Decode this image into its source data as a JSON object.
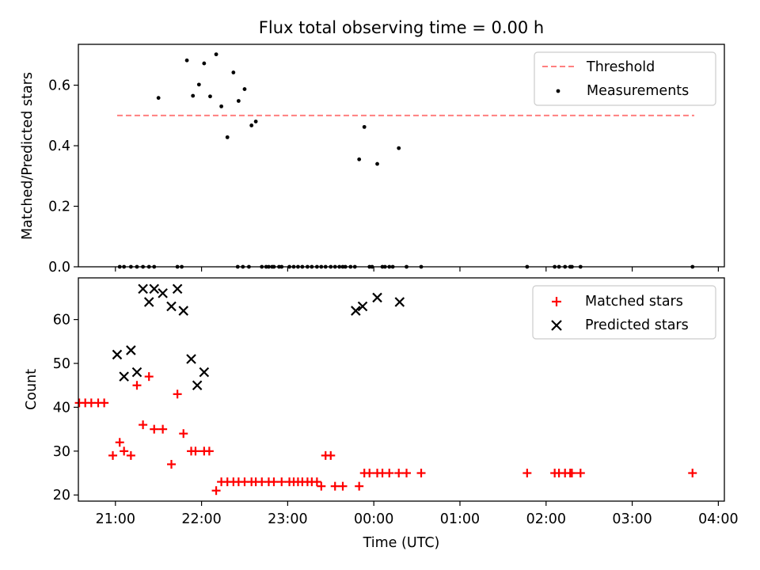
{
  "figure": {
    "title": "Flux total observing time = 0.00 h"
  },
  "chart_data": [
    {
      "type": "scatter",
      "panel": "top",
      "ylabel": "Matched/Predicted stars",
      "xlabel": "",
      "x_unit": "hours since 00:00 UTC (negative = previous day)",
      "xlim": [
        -3.43,
        4.07
      ],
      "ylim": [
        0,
        0.735
      ],
      "yticks": [
        0.0,
        0.2,
        0.4,
        0.6
      ],
      "ytick_labels": [
        "0.0",
        "0.2",
        "0.4",
        "0.6"
      ],
      "xticks": [
        -3,
        -2,
        -1,
        0,
        1,
        2,
        3,
        4
      ],
      "xtick_labels": [
        "",
        "",
        "",
        "",
        "",
        "",
        "",
        ""
      ],
      "legend_position": "top-right",
      "threshold": {
        "name": "Threshold",
        "y": 0.5,
        "x_range": [
          -2.98,
          3.72
        ],
        "color": "#ff7f7f",
        "style": "dashed"
      },
      "series": [
        {
          "name": "Measurements",
          "marker": "dot",
          "color": "#000000",
          "x": [
            -2.5,
            -2.17,
            -2.1,
            -2.03,
            -1.97,
            -1.9,
            -1.83,
            -1.77,
            -1.7,
            -1.63,
            -1.57,
            -1.5,
            -1.42,
            -1.37,
            -1.3,
            -1.22,
            -1.16,
            -1.07,
            -0.98,
            -0.93,
            -0.88,
            -0.83,
            -0.77,
            -0.72,
            -0.66,
            -0.61,
            -0.56,
            -0.5,
            -0.45,
            -0.36,
            -0.17,
            -0.11,
            -0.05,
            0.04,
            0.1,
            0.18,
            0.29,
            -2.95,
            -2.9,
            -2.82,
            -2.75,
            -2.68,
            -2.61,
            -2.55,
            -2.28,
            -2.23,
            -1.58,
            -1.52,
            -1.45,
            -1.25,
            -1.18,
            -1.1,
            -0.4,
            -0.33,
            -0.27,
            -0.22,
            -0.02,
            0.13,
            0.22,
            0.38,
            0.55,
            1.78,
            2.1,
            2.15,
            2.22,
            2.28,
            2.3,
            2.4,
            3.7
          ],
          "y": [
            0.558,
            0.682,
            0.565,
            0.602,
            0.672,
            0.563,
            0.702,
            0.53,
            0.428,
            0.642,
            0.548,
            0.587,
            0.467,
            0.48,
            0.0,
            0.0,
            0.0,
            0.0,
            0.0,
            0.0,
            0.0,
            0.0,
            0.0,
            0.0,
            0.0,
            0.0,
            0.0,
            0.0,
            0.0,
            0.0,
            0.355,
            0.462,
            0.0,
            0.34,
            0.0,
            0.0,
            0.392,
            0.0,
            0.0,
            0.0,
            0.0,
            0.0,
            0.0,
            0.0,
            0.0,
            0.0,
            0.0,
            0.0,
            0.0,
            0.0,
            0.0,
            0.0,
            0.0,
            0.0,
            0.0,
            0.0,
            0.0,
            0.0,
            0.0,
            0.0,
            0.0,
            0.0,
            0.0,
            0.0,
            0.0,
            0.0,
            0.0,
            0.0,
            0.0
          ]
        }
      ]
    },
    {
      "type": "scatter",
      "panel": "bottom",
      "xlabel": "Time (UTC)",
      "ylabel": "Count",
      "x_unit": "hours since 00:00 UTC (negative = previous day)",
      "xlim": [
        -3.43,
        4.07
      ],
      "ylim": [
        18.6,
        69.5
      ],
      "yticks": [
        20,
        30,
        40,
        50,
        60
      ],
      "ytick_labels": [
        "20",
        "30",
        "40",
        "50",
        "60"
      ],
      "xticks": [
        -3,
        -2,
        -1,
        0,
        1,
        2,
        3,
        4
      ],
      "xtick_labels": [
        "21:00",
        "22:00",
        "23:00",
        "00:00",
        "01:00",
        "02:00",
        "03:00",
        "04:00"
      ],
      "legend_position": "top-right",
      "series": [
        {
          "name": "Matched stars",
          "marker": "plus",
          "color": "#ff0000",
          "x": [
            -3.5,
            -3.42,
            -3.35,
            -3.28,
            -3.2,
            -3.13,
            -3.03,
            -2.95,
            -2.9,
            -2.82,
            -2.75,
            -2.68,
            -2.61,
            -2.55,
            -2.45,
            -2.35,
            -2.28,
            -2.21,
            -2.12,
            -2.07,
            -1.97,
            -1.91,
            -1.83,
            -1.77,
            -1.7,
            -1.63,
            -1.57,
            -1.5,
            -1.42,
            -1.37,
            -1.3,
            -1.22,
            -1.16,
            -1.07,
            -0.98,
            -0.93,
            -0.88,
            -0.83,
            -0.77,
            -0.72,
            -0.66,
            -0.61,
            -0.56,
            -0.5,
            -0.45,
            -0.36,
            -0.17,
            -0.11,
            -0.05,
            0.04,
            0.1,
            0.18,
            0.29,
            0.38,
            0.55,
            1.78,
            2.1,
            2.15,
            2.22,
            2.28,
            2.3,
            2.4,
            3.7
          ],
          "y": [
            41,
            41,
            41,
            41,
            41,
            41,
            29,
            32,
            30,
            29,
            45,
            36,
            47,
            35,
            35,
            27,
            43,
            34,
            30,
            30,
            30,
            30,
            21,
            23,
            23,
            23,
            23,
            23,
            23,
            23,
            23,
            23,
            23,
            23,
            23,
            23,
            23,
            23,
            23,
            23,
            23,
            22,
            29,
            29,
            22,
            22,
            22,
            25,
            25,
            25,
            25,
            25,
            25,
            25,
            25,
            25,
            25,
            25,
            25,
            25,
            25,
            25,
            25
          ]
        },
        {
          "name": "Predicted stars",
          "marker": "x",
          "color": "#000000",
          "x": [
            -2.98,
            -2.9,
            -2.82,
            -2.75,
            -2.68,
            -2.61,
            -2.55,
            -2.45,
            -2.35,
            -2.28,
            -2.21,
            -2.12,
            -2.05,
            -1.97,
            -0.21,
            -0.13,
            0.04,
            0.3
          ],
          "y": [
            52,
            47,
            53,
            48,
            67,
            64,
            67,
            66,
            63,
            67,
            62,
            51,
            45,
            48,
            62,
            63,
            65,
            64
          ]
        }
      ]
    }
  ]
}
